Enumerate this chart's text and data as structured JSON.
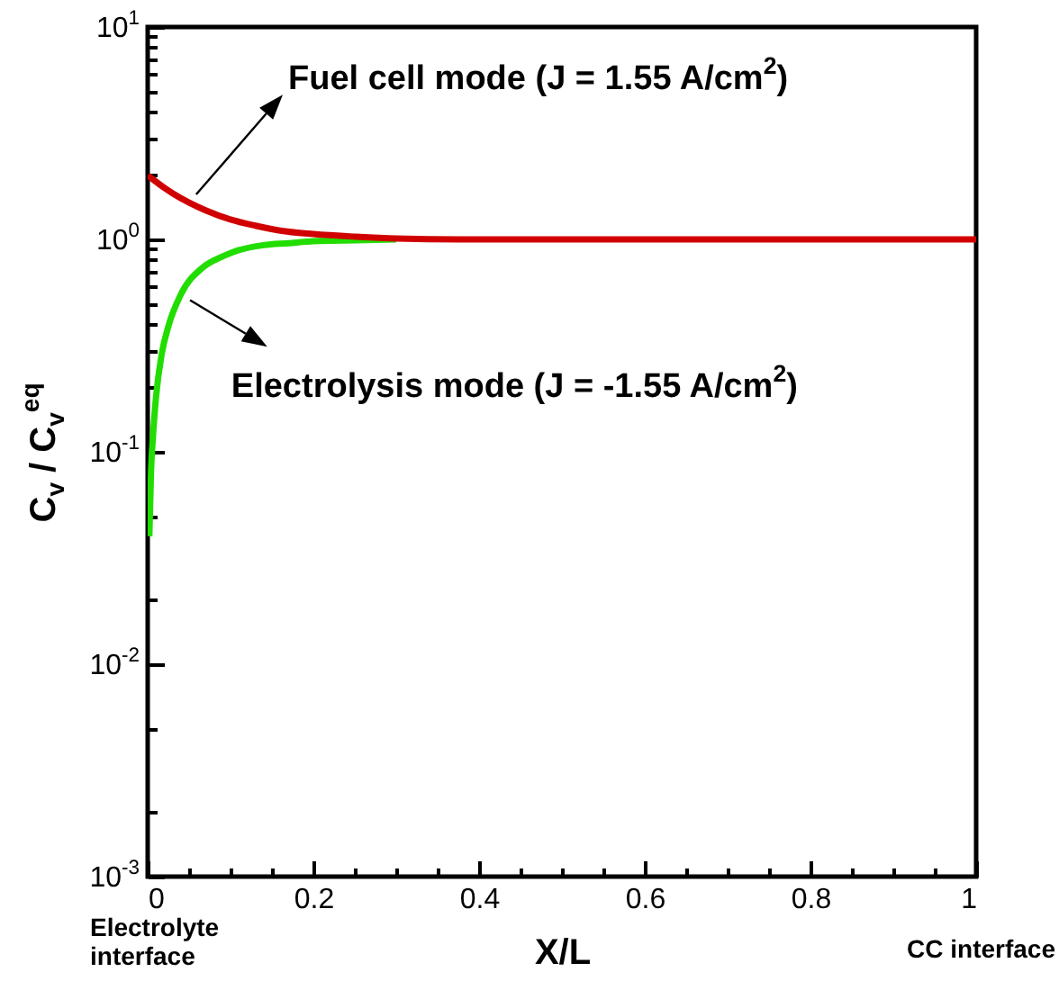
{
  "chart_data": {
    "type": "line",
    "xlabel": "X/L",
    "ylabel": "C$_{v}$ / C$_{v}$$^{eq}$",
    "log": "y",
    "grid": false,
    "legend": false,
    "xlim": [
      0,
      1
    ],
    "ylim": [
      0.001,
      10
    ],
    "xticks": [
      0,
      {
        "value": 0.05,
        "label": null
      },
      {
        "value": 0.1,
        "label": null
      },
      {
        "value": 0.15,
        "label": null
      },
      0.2,
      {
        "value": 0.25,
        "label": null
      },
      {
        "value": 0.3,
        "label": null
      },
      {
        "value": 0.35,
        "label": null
      },
      0.4,
      {
        "value": 0.45,
        "label": null
      },
      {
        "value": 0.5,
        "label": null
      },
      {
        "value": 0.55,
        "label": null
      },
      0.6,
      {
        "value": 0.65,
        "label": null
      },
      {
        "value": 0.7,
        "label": null
      },
      {
        "value": 0.75,
        "label": null
      },
      0.8,
      {
        "value": 0.85,
        "label": null
      },
      {
        "value": 0.9,
        "label": null
      },
      {
        "value": 0.95,
        "label": null
      },
      1
    ],
    "yticks": [
      {
        "value": 0.001,
        "label": "10$^{-3}$"
      },
      {
        "value": 0.002,
        "label": null
      },
      {
        "value": 0.005,
        "label": null
      },
      {
        "value": 0.01,
        "label": "10$^{-2}$"
      },
      {
        "value": 0.02,
        "label": null
      },
      {
        "value": 0.05,
        "label": null
      },
      {
        "value": 0.1,
        "label": "10$^{-1}$"
      },
      {
        "value": 0.2,
        "label": null
      },
      {
        "value": 0.3,
        "label": null
      },
      {
        "value": 0.4,
        "label": null
      },
      {
        "value": 0.5,
        "label": null
      },
      {
        "value": 0.6,
        "label": null
      },
      {
        "value": 0.7,
        "label": null
      },
      {
        "value": 0.8,
        "label": null
      },
      {
        "value": 0.9,
        "label": null
      },
      {
        "value": 1,
        "label": "10$^{0}$"
      },
      {
        "value": 2,
        "label": null
      },
      {
        "value": 3,
        "label": null
      },
      {
        "value": 4,
        "label": null
      },
      {
        "value": 5,
        "label": null
      },
      {
        "value": 6,
        "label": null
      },
      {
        "value": 7,
        "label": null
      },
      {
        "value": 8,
        "label": null
      },
      {
        "value": 9,
        "label": null
      },
      {
        "value": 10,
        "label": "10$^{1}$"
      }
    ],
    "series": [
      {
        "color": "#22dd00",
        "x": [
          0.002,
          0.004,
          0.0065,
          0.01,
          0.017,
          0.025,
          0.04,
          0.067,
          0.09,
          0.11,
          0.14,
          0.17,
          0.2,
          0.25,
          0.3
        ],
        "values": [
          0.04,
          0.08,
          0.12,
          0.18,
          0.29,
          0.39,
          0.55,
          0.74,
          0.83,
          0.89,
          0.94,
          0.96,
          0.98,
          0.99,
          1
        ]
      },
      {
        "color": "#d00000",
        "x": [
          0,
          0.01,
          0.02,
          0.03,
          0.05,
          0.07,
          0.1,
          0.13,
          0.16,
          0.2,
          0.25,
          0.3,
          0.4,
          0.6,
          0.8,
          1
        ],
        "values": [
          2,
          1.87,
          1.75,
          1.65,
          1.49,
          1.37,
          1.24,
          1.16,
          1.1,
          1.06,
          1.03,
          1.01,
          1,
          1,
          1,
          1
        ]
      }
    ],
    "annotations": [
      {
        "text": "Fuel cell mode (J = 1.55 A/cm$^{2}$)",
        "x": 0.05,
        "y": 1.49
      },
      {
        "text": "Electrolysis mode (J = -1.55 A/cm$^{2}$)",
        "x": 0.04,
        "y": 0.55
      },
      "Electrolyte interface",
      "CC interface"
    ]
  }
}
